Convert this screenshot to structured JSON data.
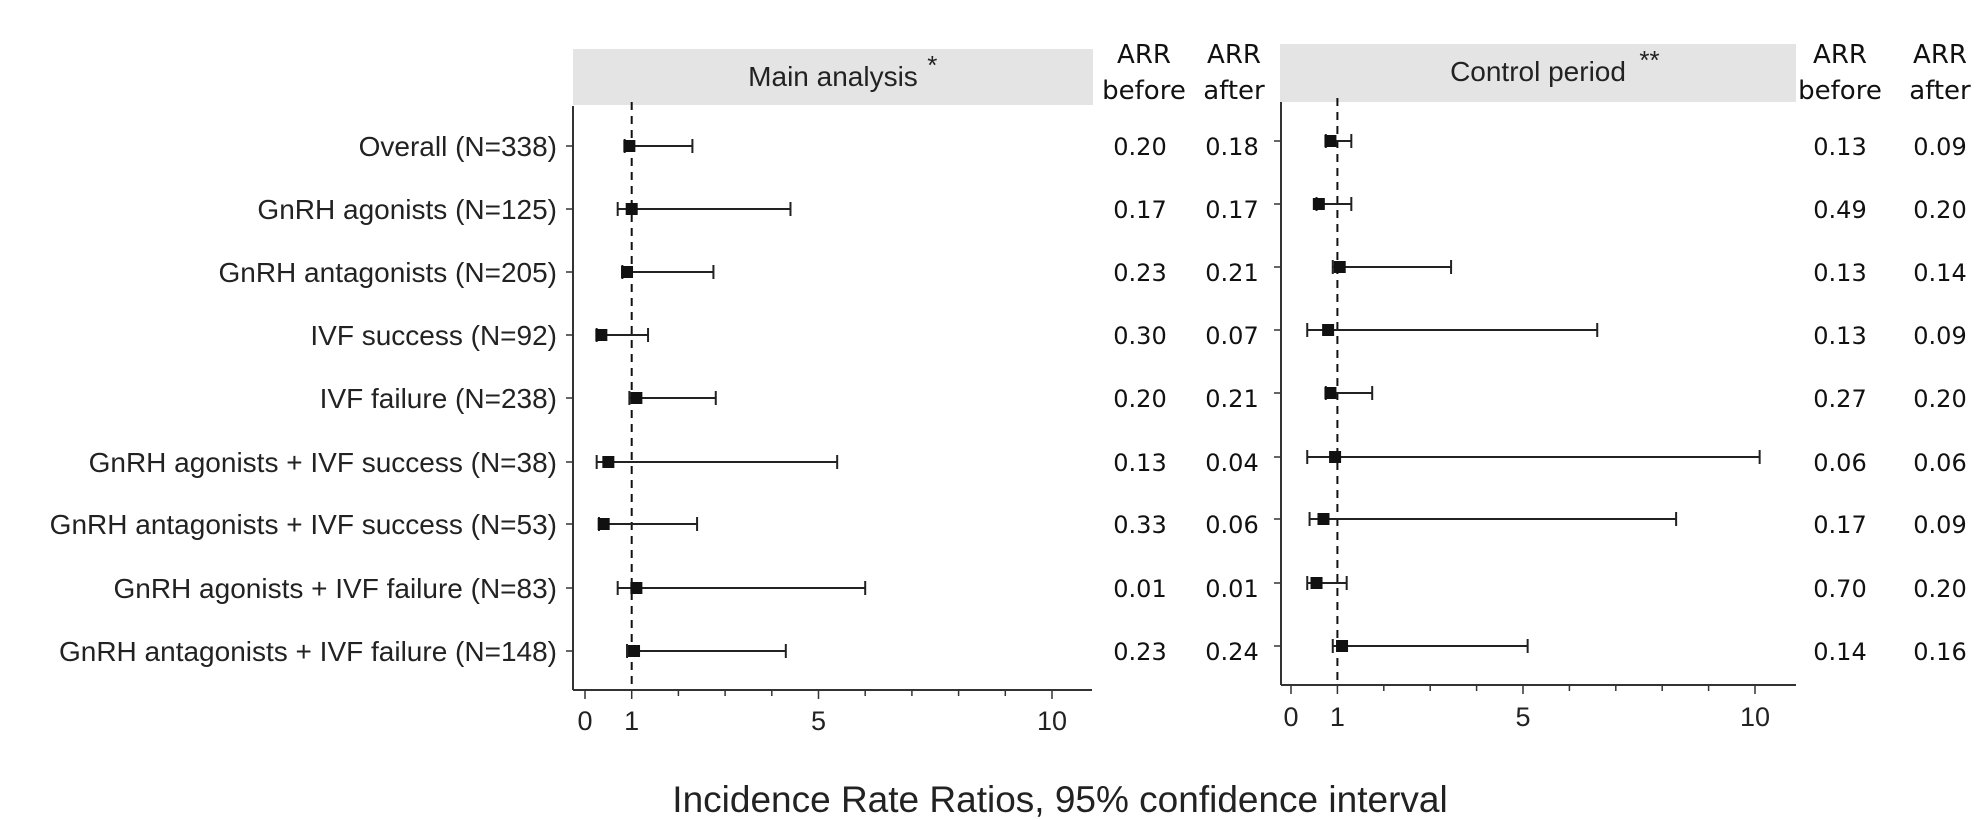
{
  "chart_data": {
    "type": "forest",
    "xlabel": "Incidence Rate Ratios, 95% confidence interval",
    "xlim": [
      0,
      10
    ],
    "xticks": [
      "0",
      "1",
      "5",
      "10"
    ],
    "reference_line": 1,
    "categories": [
      "Overall (N=338)",
      "GnRH agonists (N=125)",
      "GnRH antagonists (N=205)",
      "IVF success (N=92)",
      "IVF failure (N=238)",
      "GnRH agonists + IVF success (N=38)",
      "GnRH antagonists + IVF success (N=53)",
      "GnRH agonists + IVF failure (N=83)",
      "GnRH antagonists + IVF failure (N=148)"
    ],
    "panels": [
      {
        "title": "Main analysis",
        "title_mark": "*",
        "arr_headers": {
          "before": [
            "ARR",
            "before"
          ],
          "after": [
            "ARR",
            "after"
          ]
        },
        "estimate": [
          0.95,
          1.0,
          0.9,
          0.35,
          1.1,
          0.5,
          0.4,
          1.1,
          1.05
        ],
        "lower": [
          0.85,
          0.7,
          0.8,
          0.25,
          0.95,
          0.25,
          0.3,
          0.7,
          0.9
        ],
        "upper": [
          2.3,
          4.4,
          2.75,
          1.35,
          2.8,
          5.4,
          2.4,
          6.0,
          4.3
        ],
        "arr_before": [
          "0.20",
          "0.17",
          "0.23",
          "0.30",
          "0.20",
          "0.13",
          "0.33",
          "0.01",
          "0.23"
        ],
        "arr_after": [
          "0.18",
          "0.17",
          "0.21",
          "0.07",
          "0.21",
          "0.04",
          "0.06",
          "0.01",
          "0.24"
        ]
      },
      {
        "title": "Control period",
        "title_mark": "**",
        "arr_headers": {
          "before": [
            "ARR",
            "before"
          ],
          "after": [
            "ARR",
            "after"
          ]
        },
        "estimate": [
          0.85,
          0.6,
          1.05,
          0.8,
          0.85,
          0.95,
          0.7,
          0.55,
          1.1
        ],
        "lower": [
          0.75,
          0.55,
          0.9,
          0.35,
          0.75,
          0.35,
          0.4,
          0.35,
          0.9
        ],
        "upper": [
          1.3,
          1.3,
          3.45,
          6.6,
          1.75,
          10.1,
          8.3,
          1.2,
          5.1
        ],
        "arr_before": [
          "0.13",
          "0.49",
          "0.13",
          "0.13",
          "0.27",
          "0.06",
          "0.17",
          "0.70",
          "0.14"
        ],
        "arr_after": [
          "0.09",
          "0.20",
          "0.14",
          "0.09",
          "0.20",
          "0.06",
          "0.09",
          "0.20",
          "0.16"
        ]
      }
    ]
  }
}
